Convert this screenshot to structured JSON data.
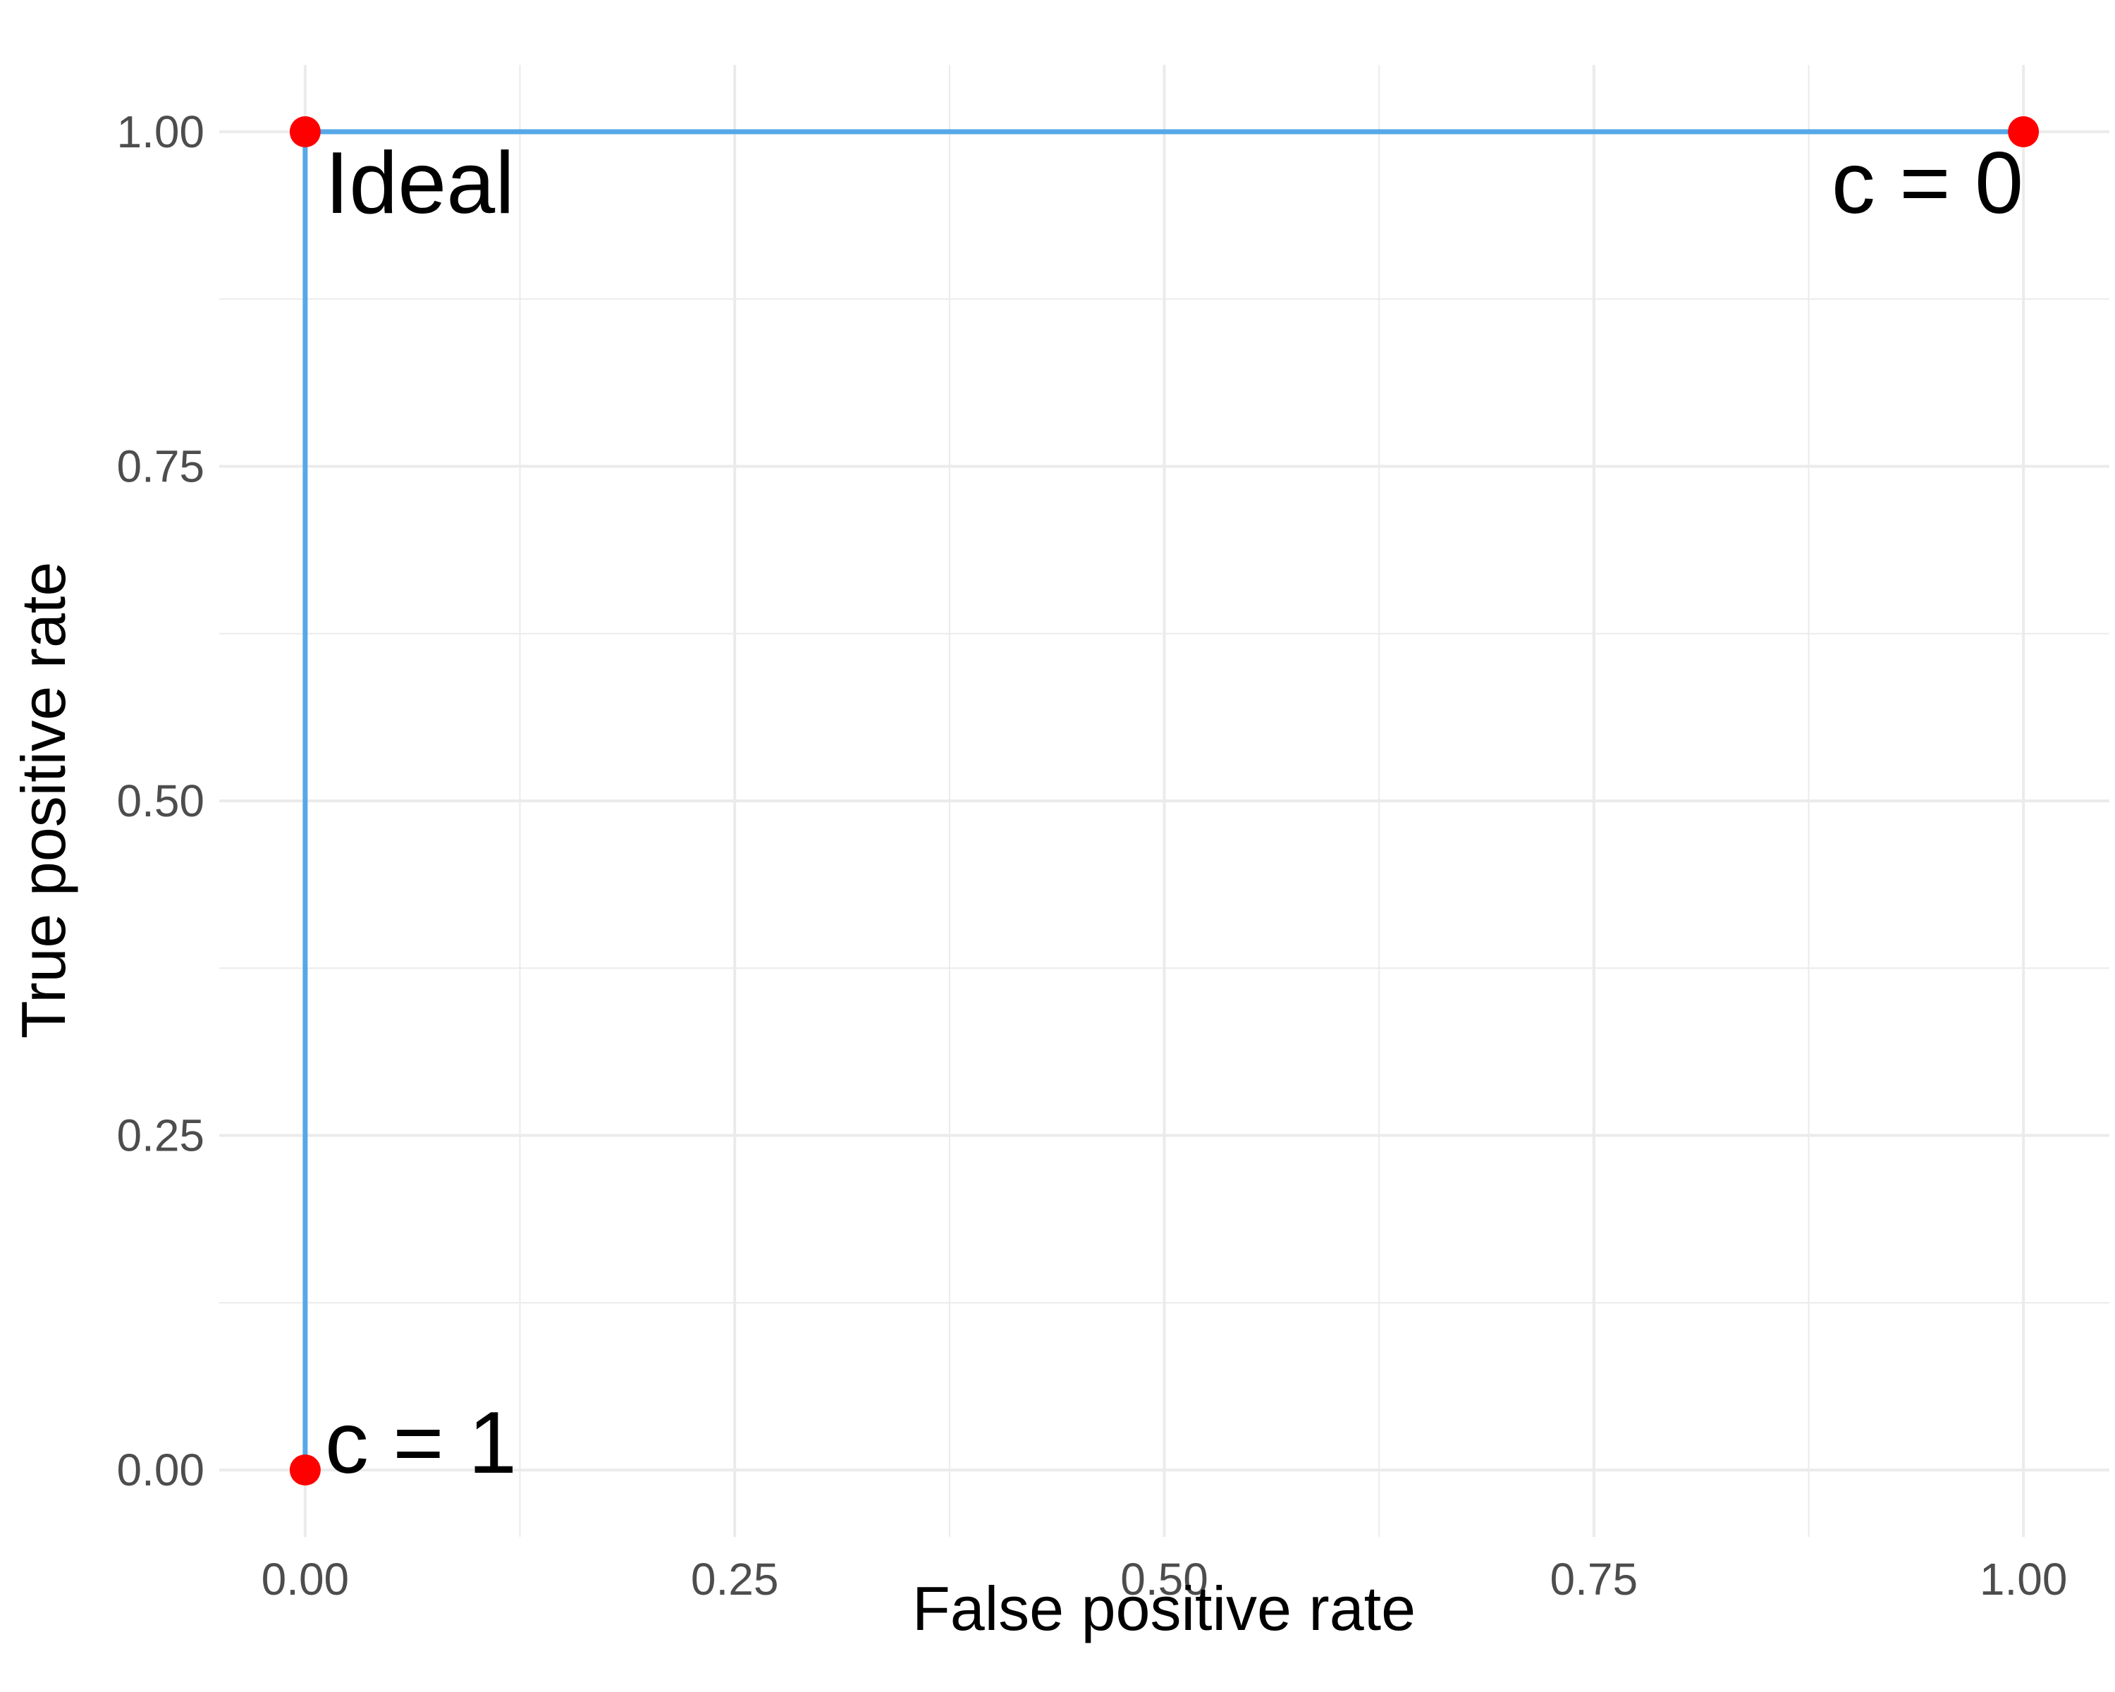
{
  "chart_data": {
    "type": "line",
    "title": "",
    "xlabel": "False positive rate",
    "ylabel": "True positive rate",
    "xlim": [
      -0.05,
      1.05
    ],
    "ylim": [
      -0.05,
      1.05
    ],
    "grid": true,
    "x_ticks": [
      0,
      0.25,
      0.5,
      0.75,
      1
    ],
    "x_tick_labels": [
      "0.00",
      "0.25",
      "0.50",
      "0.75",
      "1.00"
    ],
    "y_ticks": [
      0,
      0.25,
      0.5,
      0.75,
      1
    ],
    "y_tick_labels": [
      "0.00",
      "0.25",
      "0.50",
      "0.75",
      "1.00"
    ],
    "minor_grid_x": [
      0.125,
      0.375,
      0.625,
      0.875
    ],
    "minor_grid_y": [
      0.125,
      0.375,
      0.625,
      0.875
    ],
    "series": [
      {
        "x": [
          0,
          0,
          1
        ],
        "y": [
          0,
          1,
          1
        ],
        "color": "#56a8e8"
      }
    ],
    "points": [
      {
        "x": 0,
        "y": 1,
        "label": "Ideal",
        "color": "#ff0000"
      },
      {
        "x": 1,
        "y": 1,
        "label": "c = 0",
        "color": "#ff0000"
      },
      {
        "x": 0,
        "y": 0,
        "label": "c = 1",
        "color": "#ff0000"
      }
    ],
    "colors": {
      "grid": "#ebebeb",
      "line": "#56a8e8",
      "point": "#ff0000"
    }
  }
}
